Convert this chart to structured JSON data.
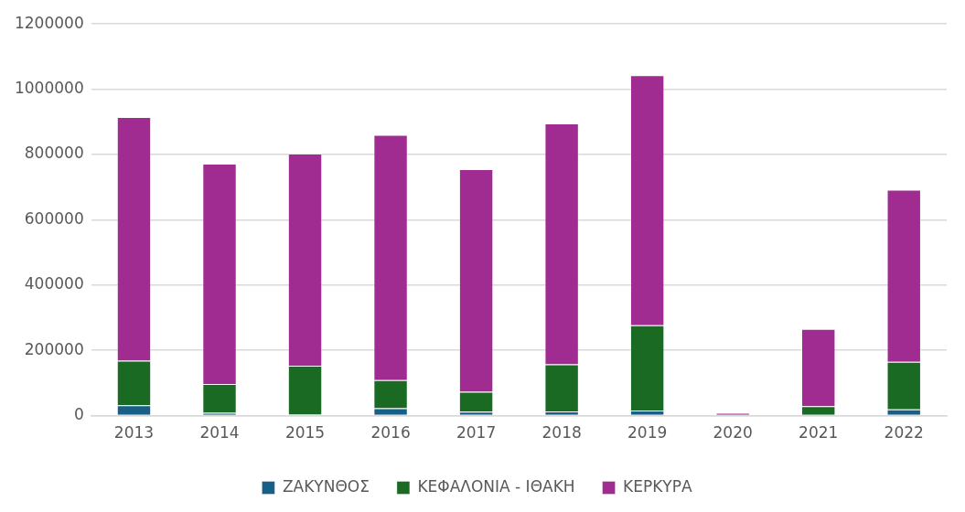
{
  "chart_data": {
    "type": "bar",
    "stacked": true,
    "categories": [
      "2013",
      "2014",
      "2015",
      "2016",
      "2017",
      "2018",
      "2019",
      "2020",
      "2021",
      "2022"
    ],
    "series": [
      {
        "name": "ΖΑΚΥΝΘΟΣ",
        "color": "#175f86",
        "values": [
          32000,
          9000,
          3000,
          23000,
          12000,
          13000,
          16000,
          0,
          0,
          19000
        ]
      },
      {
        "name": "ΚΕΦΑΛΟΝΙΑ - ΙΘΑΚΗ",
        "color": "#1b6a23",
        "values": [
          136000,
          88000,
          150000,
          86000,
          61000,
          144000,
          261000,
          0,
          29000,
          146000
        ]
      },
      {
        "name": "ΚΕΡΚΥΡΑ",
        "color": "#a02b91",
        "values": [
          747000,
          675000,
          650000,
          751000,
          682000,
          738000,
          766000,
          9000,
          237000,
          527000
        ]
      }
    ],
    "ylim": [
      0,
      1200000
    ],
    "yticks": [
      0,
      200000,
      400000,
      600000,
      800000,
      1000000,
      1200000
    ],
    "grid": "y",
    "legend": "bottom"
  }
}
